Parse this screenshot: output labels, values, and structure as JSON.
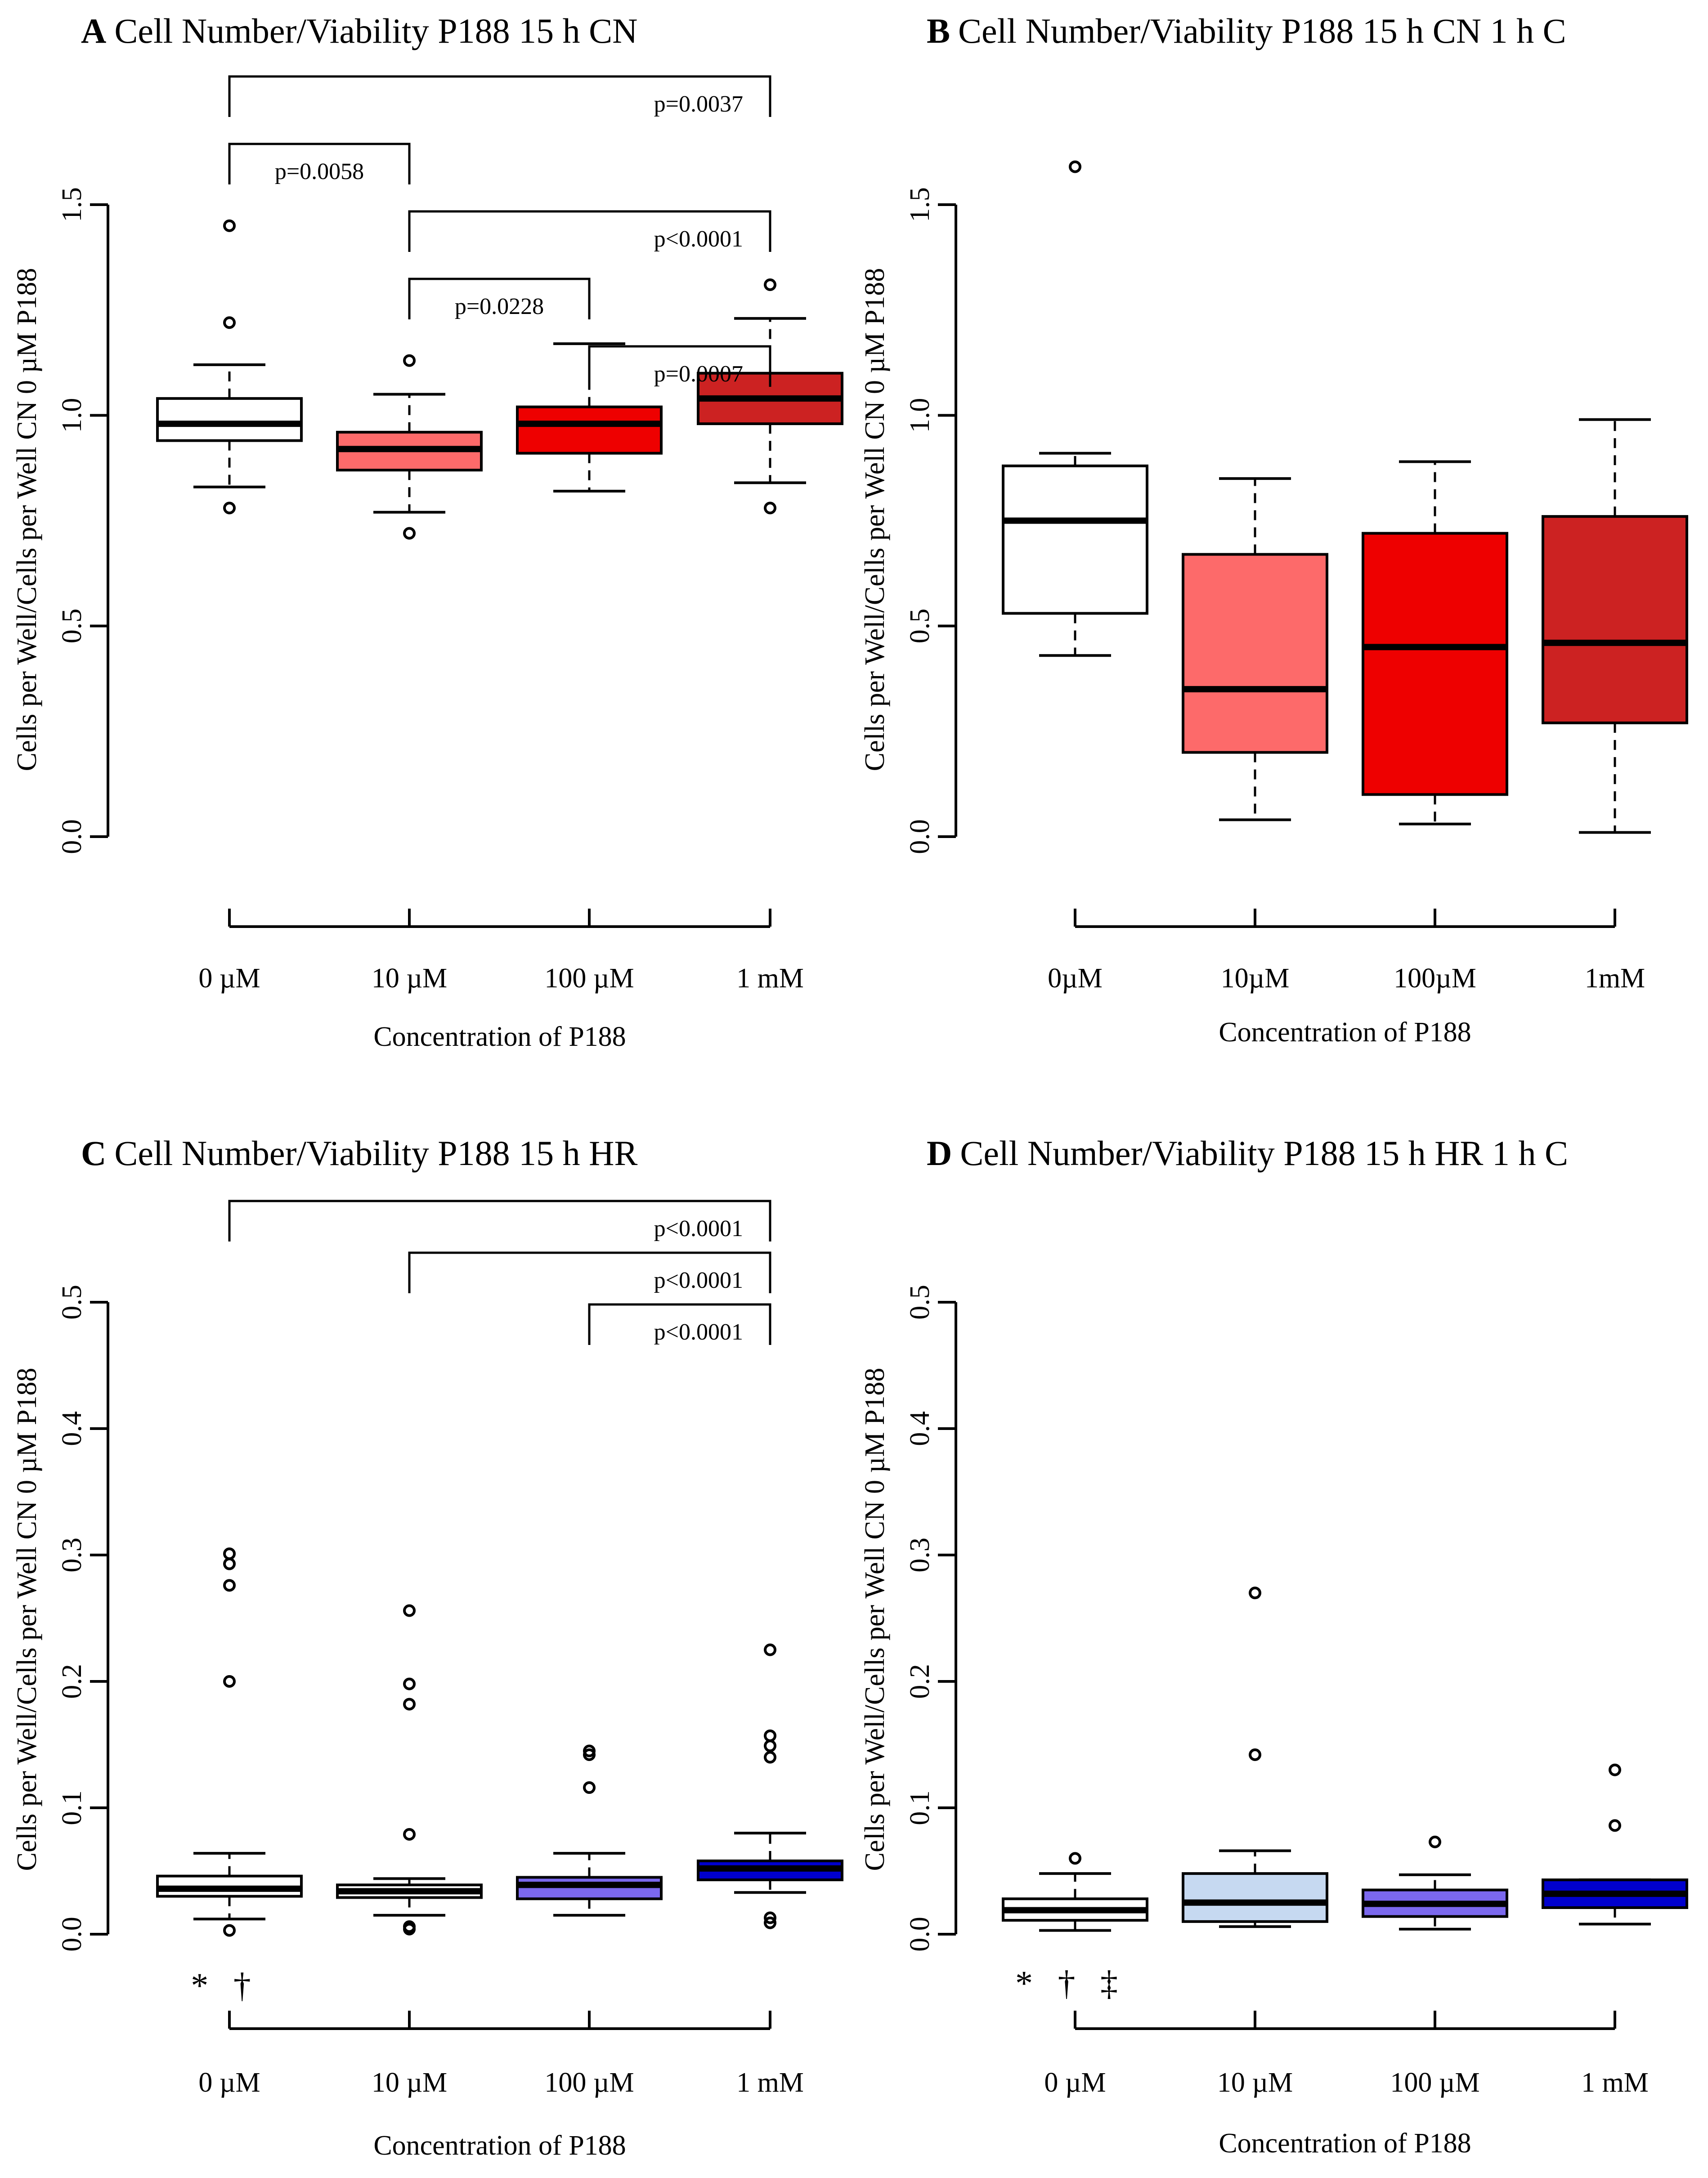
{
  "panels": [
    {
      "letter": "A",
      "title": "Cell Number/Viability  P188  15 h CN",
      "ylabel": "Cells per Well/Cells per Well CN 0 µM P188",
      "xlabel": "Concentration of P188",
      "chart_data": {
        "type": "box",
        "categories": [
          "0 µM",
          "10 µM",
          "100 µM",
          "1 mM"
        ],
        "ylim": [
          0,
          1.5
        ],
        "yticks": [
          "0.0",
          "0.5",
          "1.0",
          "1.5"
        ],
        "fills": [
          "#ffffff",
          "#fd6a6a",
          "#ee0000",
          "#cc2222"
        ],
        "boxes": [
          {
            "whisker_low": 0.83,
            "q1": 0.94,
            "median": 0.98,
            "q3": 1.04,
            "whisker_high": 1.12,
            "outliers": [
              0.78,
              1.22,
              1.45
            ]
          },
          {
            "whisker_low": 0.77,
            "q1": 0.87,
            "median": 0.92,
            "q3": 0.96,
            "whisker_high": 1.05,
            "outliers": [
              0.72,
              1.13
            ]
          },
          {
            "whisker_low": 0.82,
            "q1": 0.91,
            "median": 0.98,
            "q3": 1.02,
            "whisker_high": 1.17,
            "outliers": []
          },
          {
            "whisker_low": 0.84,
            "q1": 0.98,
            "median": 1.04,
            "q3": 1.1,
            "whisker_high": 1.23,
            "outliers": [
              0.78,
              1.31
            ]
          }
        ],
        "brackets": [
          {
            "from": 0,
            "to": 3,
            "label": "p=0.0037"
          },
          {
            "from": 0,
            "to": 1,
            "label": "p=0.0058"
          },
          {
            "from": 1,
            "to": 3,
            "label": "p<0.0001"
          },
          {
            "from": 1,
            "to": 2,
            "label": "p=0.0228"
          },
          {
            "from": 2,
            "to": 3,
            "label": "p=0.0007"
          }
        ],
        "symbols": ""
      }
    },
    {
      "letter": "B",
      "title": "Cell Number/Viability  P188  15 h CN 1 h C",
      "ylabel": "Cells per Well/Cells per Well CN 0 µM P188",
      "xlabel": "Concentration of P188",
      "chart_data": {
        "type": "box",
        "categories": [
          "0µM",
          "10µM",
          "100µM",
          "1mM"
        ],
        "ylim": [
          0,
          1.5
        ],
        "yticks": [
          "0.0",
          "0.5",
          "1.0",
          "1.5"
        ],
        "fills": [
          "#ffffff",
          "#fd6a6a",
          "#ee0000",
          "#cc2222"
        ],
        "boxes": [
          {
            "whisker_low": 0.43,
            "q1": 0.53,
            "median": 0.75,
            "q3": 0.88,
            "whisker_high": 0.91,
            "outliers": [
              1.59
            ]
          },
          {
            "whisker_low": 0.04,
            "q1": 0.2,
            "median": 0.35,
            "q3": 0.67,
            "whisker_high": 0.85,
            "outliers": []
          },
          {
            "whisker_low": 0.03,
            "q1": 0.1,
            "median": 0.45,
            "q3": 0.72,
            "whisker_high": 0.89,
            "outliers": []
          },
          {
            "whisker_low": 0.01,
            "q1": 0.27,
            "median": 0.46,
            "q3": 0.76,
            "whisker_high": 0.99,
            "outliers": []
          }
        ],
        "brackets": [],
        "symbols": ""
      }
    },
    {
      "letter": "C",
      "title": "Cell Number/Viability  P188  15 h HR",
      "ylabel": "Cells per Well/Cells per Well CN 0 µM P188",
      "xlabel": "Concentration of P188",
      "chart_data": {
        "type": "box",
        "categories": [
          "0 µM",
          "10 µM",
          "100 µM",
          "1 mM"
        ],
        "ylim": [
          0,
          0.5
        ],
        "yticks": [
          "0.0",
          "0.1",
          "0.2",
          "0.3",
          "0.4",
          "0.5"
        ],
        "fills": [
          "#ffffff",
          "#ffffff",
          "#7b68ee",
          "#0000cd"
        ],
        "boxes": [
          {
            "whisker_low": 0.012,
            "q1": 0.03,
            "median": 0.036,
            "q3": 0.046,
            "whisker_high": 0.064,
            "outliers": [
              0.003,
              0.2,
              0.276,
              0.293,
              0.301
            ]
          },
          {
            "whisker_low": 0.015,
            "q1": 0.029,
            "median": 0.034,
            "q3": 0.039,
            "whisker_high": 0.044,
            "outliers": [
              0.004,
              0.006,
              0.079,
              0.182,
              0.198,
              0.256
            ]
          },
          {
            "whisker_low": 0.015,
            "q1": 0.028,
            "median": 0.039,
            "q3": 0.045,
            "whisker_high": 0.064,
            "outliers": [
              0.116,
              0.142,
              0.145
            ]
          },
          {
            "whisker_low": 0.033,
            "q1": 0.043,
            "median": 0.052,
            "q3": 0.058,
            "whisker_high": 0.08,
            "outliers": [
              0.009,
              0.013,
              0.14,
              0.149,
              0.157,
              0.225
            ]
          }
        ],
        "brackets": [
          {
            "from": 0,
            "to": 3,
            "label": "p<0.0001"
          },
          {
            "from": 1,
            "to": 3,
            "label": "p<0.0001"
          },
          {
            "from": 2,
            "to": 3,
            "label": "p<0.0001"
          }
        ],
        "symbols": "* †"
      }
    },
    {
      "letter": "D",
      "title": "Cell Number/Viability  P188  15 h HR 1 h C",
      "ylabel": "Cells per Well/Cells per Well CN 0 µM P188",
      "xlabel": "Concentration of P188",
      "chart_data": {
        "type": "box",
        "categories": [
          "0 µM",
          "10 µM",
          "100 µM",
          "1 mM"
        ],
        "ylim": [
          0,
          0.5
        ],
        "yticks": [
          "0.0",
          "0.1",
          "0.2",
          "0.3",
          "0.4",
          "0.5"
        ],
        "fills": [
          "#ffffff",
          "#c6d9f1",
          "#7b68ee",
          "#0000cd"
        ],
        "boxes": [
          {
            "whisker_low": 0.003,
            "q1": 0.011,
            "median": 0.019,
            "q3": 0.028,
            "whisker_high": 0.048,
            "outliers": [
              0.06
            ]
          },
          {
            "whisker_low": 0.006,
            "q1": 0.01,
            "median": 0.025,
            "q3": 0.048,
            "whisker_high": 0.066,
            "outliers": [
              0.142,
              0.27
            ]
          },
          {
            "whisker_low": 0.004,
            "q1": 0.014,
            "median": 0.024,
            "q3": 0.035,
            "whisker_high": 0.047,
            "outliers": [
              0.073
            ]
          },
          {
            "whisker_low": 0.008,
            "q1": 0.021,
            "median": 0.032,
            "q3": 0.043,
            "whisker_high": 0.043,
            "outliers": [
              0.086,
              0.13
            ]
          }
        ],
        "brackets": [],
        "symbols": "* † ‡"
      }
    }
  ]
}
